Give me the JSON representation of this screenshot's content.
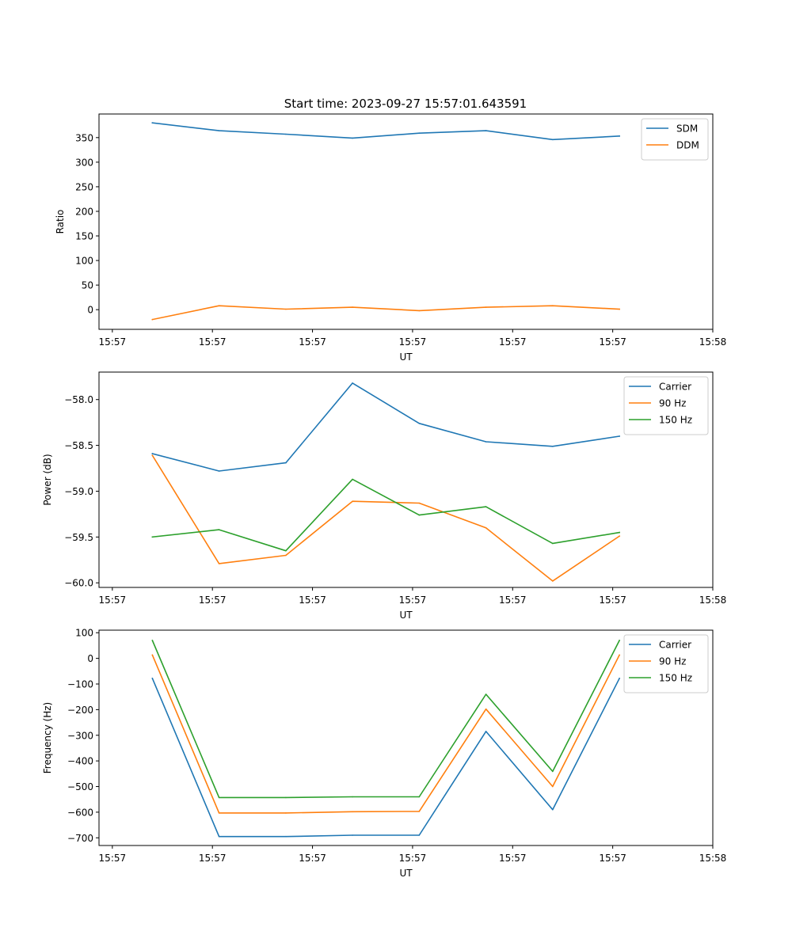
{
  "title": "Start time: 2023-09-27 15:57:01.643591",
  "colors": {
    "blue": "#1f77b4",
    "orange": "#ff7f0e",
    "green": "#2ca02c"
  },
  "chart_data": [
    {
      "id": "ratio",
      "type": "line",
      "title": "Start time: 2023-09-27 15:57:01.643591",
      "xlabel": "UT",
      "ylabel": "Ratio",
      "x": [
        1,
        2,
        3,
        4,
        5,
        6,
        7,
        8
      ],
      "xlim": [
        0.2,
        9.4
      ],
      "xticks": [
        0.4,
        1.9,
        3.4,
        4.9,
        6.4,
        7.9,
        9.4
      ],
      "xtick_labels": [
        "15:57",
        "15:57",
        "15:57",
        "15:57",
        "15:57",
        "15:57",
        "15:58"
      ],
      "ylim": [
        -40,
        398
      ],
      "yticks": [
        0,
        50,
        100,
        150,
        200,
        250,
        300,
        350
      ],
      "ytick_labels": [
        "0",
        "50",
        "100",
        "150",
        "200",
        "250",
        "300",
        "350"
      ],
      "legend_position": "top-right",
      "series": [
        {
          "name": "SDM",
          "color": "#1f77b4",
          "values": [
            380,
            364,
            357,
            349,
            359,
            364,
            346,
            353
          ]
        },
        {
          "name": "DDM",
          "color": "#ff7f0e",
          "values": [
            -20,
            8,
            1,
            5,
            -2,
            5,
            8,
            1
          ]
        }
      ]
    },
    {
      "id": "power",
      "type": "line",
      "xlabel": "UT",
      "ylabel": "Power (dB)",
      "x": [
        1,
        2,
        3,
        4,
        5,
        6,
        7,
        8
      ],
      "xlim": [
        0.2,
        9.4
      ],
      "xticks": [
        0.4,
        1.9,
        3.4,
        4.9,
        6.4,
        7.9,
        9.4
      ],
      "xtick_labels": [
        "15:57",
        "15:57",
        "15:57",
        "15:57",
        "15:57",
        "15:57",
        "15:58"
      ],
      "ylim": [
        -60.05,
        -57.7
      ],
      "yticks": [
        -60.0,
        -59.5,
        -59.0,
        -58.5,
        -58.0
      ],
      "ytick_labels": [
        "−60.0",
        "−59.5",
        "−59.0",
        "−58.5",
        "−58.0"
      ],
      "legend_position": "top-right",
      "series": [
        {
          "name": "Carrier",
          "color": "#1f77b4",
          "values": [
            -58.59,
            -58.78,
            -58.69,
            -57.82,
            -58.26,
            -58.46,
            -58.51,
            -58.4
          ]
        },
        {
          "name": "90 Hz",
          "color": "#ff7f0e",
          "values": [
            -58.61,
            -59.79,
            -59.7,
            -59.11,
            -59.13,
            -59.4,
            -59.98,
            -59.49
          ]
        },
        {
          "name": "150 Hz",
          "color": "#2ca02c",
          "values": [
            -59.5,
            -59.42,
            -59.65,
            -58.87,
            -59.26,
            -59.17,
            -59.57,
            -59.45
          ]
        }
      ]
    },
    {
      "id": "frequency",
      "type": "line",
      "xlabel": "UT",
      "ylabel": "Frequency (Hz)",
      "x": [
        1,
        2,
        3,
        4,
        5,
        6,
        7,
        8
      ],
      "xlim": [
        0.2,
        9.4
      ],
      "xticks": [
        0.4,
        1.9,
        3.4,
        4.9,
        6.4,
        7.9,
        9.4
      ],
      "xtick_labels": [
        "15:57",
        "15:57",
        "15:57",
        "15:57",
        "15:57",
        "15:57",
        "15:58"
      ],
      "ylim": [
        -730,
        110
      ],
      "yticks": [
        -700,
        -600,
        -500,
        -400,
        -300,
        -200,
        -100,
        0,
        100
      ],
      "ytick_labels": [
        "−700",
        "−600",
        "−500",
        "−400",
        "−300",
        "−200",
        "−100",
        "0",
        "100"
      ],
      "legend_position": "top-right",
      "series": [
        {
          "name": "Carrier",
          "color": "#1f77b4",
          "values": [
            -78,
            -695,
            -695,
            -690,
            -690,
            -285,
            -590,
            -78
          ]
        },
        {
          "name": "90 Hz",
          "color": "#ff7f0e",
          "values": [
            13,
            -603,
            -603,
            -598,
            -597,
            -198,
            -500,
            13
          ]
        },
        {
          "name": "150 Hz",
          "color": "#2ca02c",
          "values": [
            70,
            -543,
            -543,
            -540,
            -540,
            -140,
            -441,
            70
          ]
        }
      ]
    }
  ]
}
